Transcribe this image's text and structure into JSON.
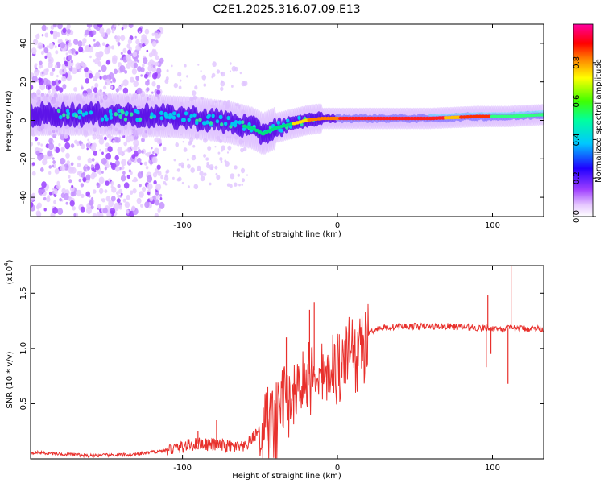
{
  "title": "C2E1.2025.316.07.09.E13",
  "chart_data": [
    {
      "type": "heatmap",
      "name": "spectrogram",
      "xlabel": "Height of straight line (km)",
      "ylabel": "Frequency (Hz)",
      "xlim": [
        -198,
        133
      ],
      "ylim": [
        -50,
        50
      ],
      "xticks": [
        -100,
        0,
        100
      ],
      "yticks": [
        -40,
        -20,
        0,
        20,
        40
      ],
      "colorbar": {
        "label": "Normalized spectral amplitude",
        "range": [
          0,
          1
        ],
        "ticks": [
          0.0,
          0.2,
          0.4,
          0.6,
          0.8
        ]
      },
      "ridge": [
        {
          "x": -198,
          "f": 3
        },
        {
          "x": -170,
          "f": 3
        },
        {
          "x": -140,
          "f": 3
        },
        {
          "x": -110,
          "f": 2
        },
        {
          "x": -90,
          "f": 1
        },
        {
          "x": -70,
          "f": -1
        },
        {
          "x": -55,
          "f": -4
        },
        {
          "x": -48,
          "f": -7
        },
        {
          "x": -40,
          "f": -4
        },
        {
          "x": -30,
          "f": -2
        },
        {
          "x": -20,
          "f": 0
        },
        {
          "x": -10,
          "f": 1
        },
        {
          "x": 0,
          "f": 1
        },
        {
          "x": 20,
          "f": 1
        },
        {
          "x": 60,
          "f": 1
        },
        {
          "x": 90,
          "f": 2
        },
        {
          "x": 110,
          "f": 2
        },
        {
          "x": 133,
          "f": 3
        }
      ]
    },
    {
      "type": "line",
      "name": "snr",
      "xlabel": "Height of straight line (km)",
      "ylabel": "SNR (10 * v/v)",
      "scale_label": "(x10",
      "scale_exp": "4",
      "scale_close": ")",
      "xlim": [
        -198,
        133
      ],
      "ylim": [
        0,
        1.75
      ],
      "xticks": [
        -100,
        0,
        100
      ],
      "yticks": [
        "0.5",
        "1.0",
        "1.5"
      ],
      "envelope": [
        {
          "x": -198,
          "y": 0.06
        },
        {
          "x": -160,
          "y": 0.03
        },
        {
          "x": -130,
          "y": 0.04
        },
        {
          "x": -110,
          "y": 0.08
        },
        {
          "x": -90,
          "y": 0.14
        },
        {
          "x": -75,
          "y": 0.12
        },
        {
          "x": -60,
          "y": 0.1
        },
        {
          "x": -45,
          "y": 0.35
        },
        {
          "x": -35,
          "y": 0.55
        },
        {
          "x": -25,
          "y": 0.7
        },
        {
          "x": -15,
          "y": 0.8
        },
        {
          "x": -5,
          "y": 0.85
        },
        {
          "x": 5,
          "y": 0.95
        },
        {
          "x": 15,
          "y": 1.1
        },
        {
          "x": 25,
          "y": 1.18
        },
        {
          "x": 40,
          "y": 1.2
        },
        {
          "x": 70,
          "y": 1.2
        },
        {
          "x": 100,
          "y": 1.18
        },
        {
          "x": 120,
          "y": 1.18
        },
        {
          "x": 133,
          "y": 1.18
        }
      ],
      "spikes": [
        {
          "x": -15,
          "y": 1.42
        },
        {
          "x": -18,
          "y": 1.35
        },
        {
          "x": -33,
          "y": 1.1
        },
        {
          "x": -45,
          "y": 0.65
        },
        {
          "x": -78,
          "y": 0.35
        },
        {
          "x": -90,
          "y": 0.25
        },
        {
          "x": 97,
          "y": 1.48
        },
        {
          "x": 96,
          "y": 0.83
        },
        {
          "x": 110,
          "y": 0.68
        },
        {
          "x": 112,
          "y": 1.75
        },
        {
          "x": 99,
          "y": 0.95
        }
      ]
    }
  ]
}
